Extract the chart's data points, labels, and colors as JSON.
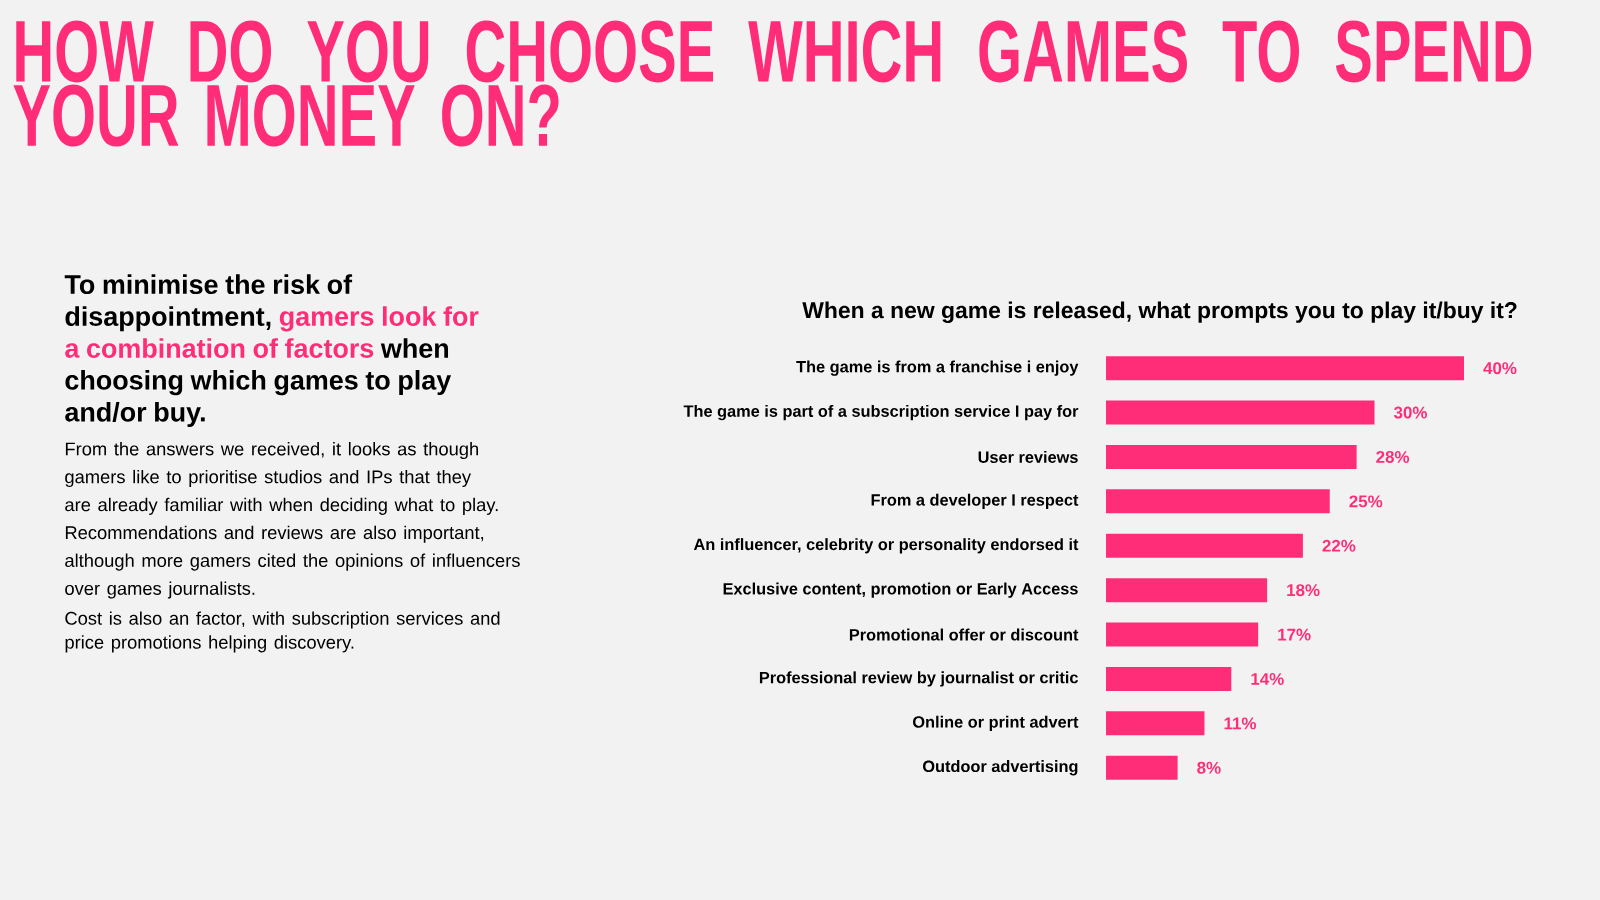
{
  "chart_data": {
    "type": "bar",
    "orientation": "horizontal",
    "title": "HOW DO YOU CHOOSE WHICH GAMES TO SPEND YOUR MONEY ON?",
    "subtitle": "When a new game is released, what prompts you to play it/buy it?",
    "categories": [
      "The game is from a franchise i enjoy",
      "The game is part of a subscription service I pay for",
      "User reviews",
      "From a developer I respect",
      "An influencer, celebrity or personality endorsed it",
      "Exclusive content, promotion or Early Access",
      "Promotional offer or discount",
      "Professional review by journalist or critic",
      "Online or print advert",
      "Outdoor advertising"
    ],
    "values": [
      40,
      30,
      28,
      25,
      22,
      18,
      17,
      14,
      11,
      8
    ],
    "value_labels": [
      "40%",
      "30%",
      "28%",
      "25%",
      "22%",
      "18%",
      "17%",
      "14%",
      "11%",
      "8%"
    ],
    "color": "#ff2d78",
    "annotations": [
      "To minimise the risk of disappointment,",
      "gamers look for a combination of factors",
      "when choosing which games to play and/or buy.",
      "From the answers we received, it looks as though gamers like to prioritise studios and IPs that they are already familiar with when deciding what to play. Recommendations and reviews are also important, although more gamers cited the opinions of influencers over games journalists.",
      "Cost is also an factor, with subscription services and price promotions helping discovery."
    ]
  }
}
